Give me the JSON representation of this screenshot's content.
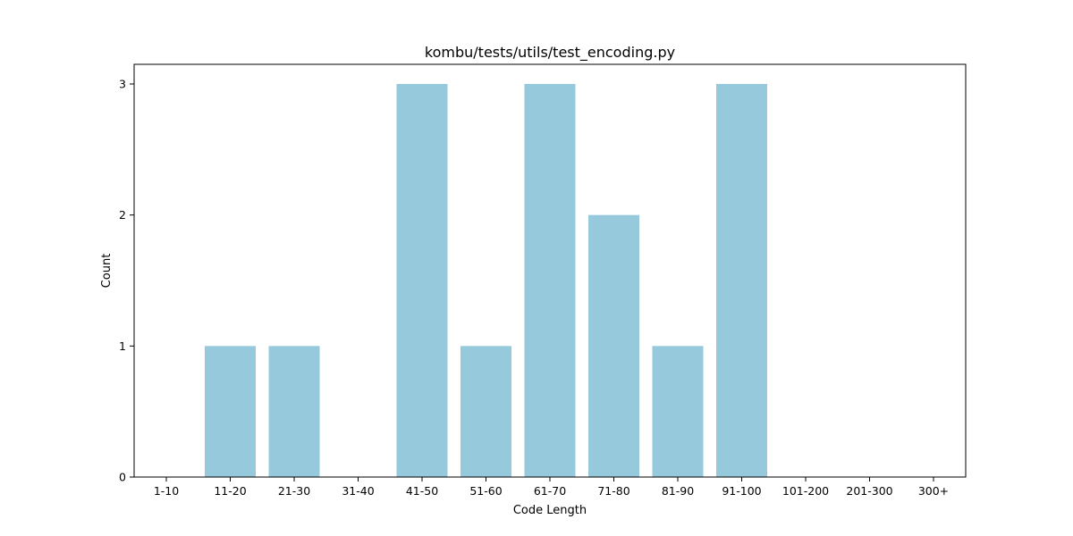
{
  "chart_data": {
    "type": "bar",
    "title": "kombu/tests/utils/test_encoding.py",
    "xlabel": "Code Length",
    "ylabel": "Count",
    "categories": [
      "1-10",
      "11-20",
      "21-30",
      "31-40",
      "41-50",
      "51-60",
      "61-70",
      "71-80",
      "81-90",
      "91-100",
      "101-200",
      "201-300",
      "300+"
    ],
    "values": [
      0,
      1,
      1,
      0,
      3,
      1,
      3,
      2,
      1,
      3,
      0,
      0,
      0
    ],
    "yticks": [
      0,
      1,
      2,
      3
    ],
    "ylim": [
      0,
      3.15
    ],
    "bar_color": "#96c9dc",
    "grid": false,
    "legend": "none"
  }
}
